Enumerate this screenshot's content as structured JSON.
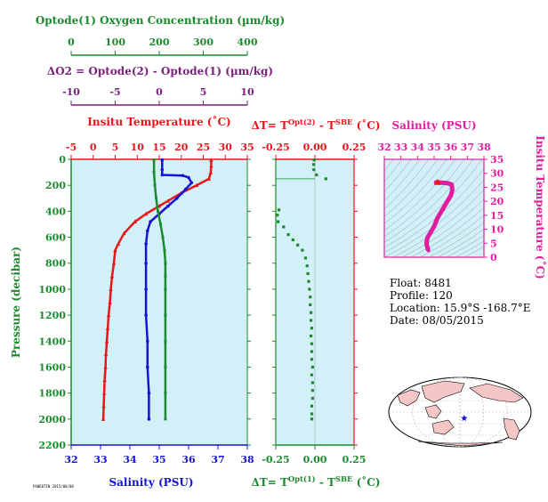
{
  "info": {
    "float": "Float: 8481",
    "profile": "Profile: 120",
    "location": "Location: 15.9°S -168.7°E",
    "date": "Date: 08/05/2015"
  },
  "stamp": "P4WE8TIN 2015/08/08",
  "colors": {
    "temperature": "#e8161b",
    "salinity": "#1414d4",
    "oxygen": "#1c8a2e",
    "delta_o2": "#7b1f7e",
    "ts_diagram": "#e01ea0",
    "panel_bg": "#d2f0f7",
    "land": "#f4c6c6"
  },
  "chart_data": [
    {
      "type": "line",
      "id": "profile",
      "ylabel": "Pressure (decibar)",
      "ylim": [
        2200,
        0
      ],
      "yticks": [
        0,
        200,
        400,
        600,
        800,
        1000,
        1200,
        1400,
        1600,
        1800,
        2000,
        2200
      ],
      "axes": [
        {
          "label": "Insitu Temperature (˚C)",
          "color": "#e8161b",
          "lim": [
            -5,
            35
          ],
          "ticks": [
            -5,
            0,
            5,
            10,
            15,
            20,
            25,
            30,
            35
          ],
          "position": "top"
        },
        {
          "label": "Salinity (PSU)",
          "color": "#1414d4",
          "lim": [
            32,
            38
          ],
          "ticks": [
            32,
            33,
            34,
            35,
            36,
            37,
            38
          ],
          "position": "bottom"
        },
        {
          "label": "Optode(1) Oxygen Concentration (µm/kg)",
          "color": "#1c8a2e",
          "lim": [
            0,
            400
          ],
          "ticks": [
            0,
            100,
            200,
            300,
            400
          ],
          "position": "top-detached"
        },
        {
          "label": "ΔO2 = Optode(2) - Optode(1)   (µm/kg)",
          "color": "#7b1f7e",
          "lim": [
            -10,
            10
          ],
          "ticks": [
            -10,
            -5,
            0,
            5,
            10
          ],
          "position": "top-detached"
        }
      ],
      "series": [
        {
          "name": "Insitu Temperature",
          "axis": 0,
          "points": [
            [
              26.8,
              5
            ],
            [
              26.8,
              50
            ],
            [
              26.7,
              100
            ],
            [
              26.3,
              150
            ],
            [
              23.5,
              200
            ],
            [
              20,
              260
            ],
            [
              17,
              320
            ],
            [
              15,
              360
            ],
            [
              12,
              420
            ],
            [
              9.5,
              480
            ],
            [
              7,
              570
            ],
            [
              5.7,
              650
            ],
            [
              5,
              700
            ],
            [
              4.7,
              800
            ],
            [
              4.3,
              900
            ],
            [
              4,
              1000
            ],
            [
              3.8,
              1100
            ],
            [
              3.5,
              1200
            ],
            [
              3.3,
              1300
            ],
            [
              3.1,
              1400
            ],
            [
              2.9,
              1500
            ],
            [
              2.8,
              1600
            ],
            [
              2.6,
              1700
            ],
            [
              2.5,
              1800
            ],
            [
              2.4,
              1900
            ],
            [
              2.3,
              2000
            ]
          ]
        },
        {
          "name": "Salinity",
          "axis": 1,
          "points": [
            [
              35.1,
              5
            ],
            [
              35.1,
              80
            ],
            [
              35.1,
              120
            ],
            [
              35.8,
              125
            ],
            [
              36.0,
              140
            ],
            [
              36.1,
              180
            ],
            [
              35.9,
              230
            ],
            [
              35.6,
              300
            ],
            [
              35.3,
              360
            ],
            [
              35.0,
              420
            ],
            [
              34.7,
              480
            ],
            [
              34.6,
              550
            ],
            [
              34.55,
              650
            ],
            [
              34.55,
              800
            ],
            [
              34.55,
              1000
            ],
            [
              34.55,
              1200
            ],
            [
              34.6,
              1400
            ],
            [
              34.6,
              1600
            ],
            [
              34.65,
              1800
            ],
            [
              34.65,
              2000
            ]
          ]
        },
        {
          "name": "Oxygen",
          "axis": 2,
          "points": [
            [
              188,
              5
            ],
            [
              188,
              100
            ],
            [
              190,
              200
            ],
            [
              193,
              300
            ],
            [
              197,
              400
            ],
            [
              203,
              500
            ],
            [
              208,
              600
            ],
            [
              212,
              700
            ],
            [
              214,
              800
            ],
            [
              214,
              900
            ],
            [
              214,
              1000
            ],
            [
              214,
              1200
            ],
            [
              214,
              1400
            ],
            [
              214,
              1600
            ],
            [
              214,
              1800
            ],
            [
              214,
              2000
            ]
          ]
        }
      ]
    },
    {
      "type": "scatter",
      "id": "delta_t",
      "xlabel_top": "ΔT= T^{Opt(2)} - T^{SBE} (˚C)",
      "xlabel_bottom": "ΔT= T^{Opt(1)} - T^{SBE} (˚C)",
      "xlim": [
        -0.25,
        0.25
      ],
      "xticks": [
        -0.25,
        0.0,
        0.25
      ],
      "xtick_labels": [
        "-0.25",
        "0.00",
        "0.25"
      ],
      "ylim": [
        2200,
        0
      ],
      "series": [
        {
          "name": "ΔT Opt(1)",
          "points": [
            [
              -0.005,
              5
            ],
            [
              -0.008,
              40
            ],
            [
              -0.007,
              80
            ],
            [
              0.01,
              120
            ],
            [
              0.07,
              150
            ],
            [
              -0.23,
              390
            ],
            [
              -0.24,
              430
            ],
            [
              -0.235,
              480
            ],
            [
              -0.2,
              520
            ],
            [
              -0.17,
              580
            ],
            [
              -0.14,
              620
            ],
            [
              -0.11,
              660
            ],
            [
              -0.08,
              700
            ],
            [
              -0.06,
              760
            ],
            [
              -0.05,
              820
            ],
            [
              -0.045,
              880
            ],
            [
              -0.04,
              940
            ],
            [
              -0.035,
              1000
            ],
            [
              -0.03,
              1060
            ],
            [
              -0.03,
              1120
            ],
            [
              -0.025,
              1180
            ],
            [
              -0.025,
              1240
            ],
            [
              -0.02,
              1300
            ],
            [
              -0.025,
              1360
            ],
            [
              -0.02,
              1420
            ],
            [
              -0.02,
              1480
            ],
            [
              -0.02,
              1540
            ],
            [
              -0.015,
              1600
            ],
            [
              -0.02,
              1660
            ],
            [
              -0.015,
              1720
            ],
            [
              -0.015,
              1780
            ],
            [
              -0.015,
              1840
            ],
            [
              -0.02,
              1900
            ],
            [
              -0.02,
              1960
            ],
            [
              -0.02,
              2000
            ]
          ]
        }
      ]
    },
    {
      "type": "line",
      "id": "ts_diagram",
      "xlabel": "Salinity (PSU)",
      "ylabel": "Insitu Temperature (˚C)",
      "xlim": [
        32,
        38
      ],
      "xticks": [
        32,
        33,
        34,
        35,
        36,
        37,
        38
      ],
      "ylim": [
        0,
        35
      ],
      "yticks": [
        0,
        5,
        10,
        15,
        20,
        25,
        30,
        35
      ],
      "series": [
        {
          "name": "T-S",
          "points": [
            [
              35.1,
              26.8
            ],
            [
              35.8,
              26.5
            ],
            [
              36.05,
              26
            ],
            [
              36.1,
              24
            ],
            [
              36.0,
              22
            ],
            [
              35.8,
              20
            ],
            [
              35.5,
              17
            ],
            [
              35.2,
              14
            ],
            [
              35.0,
              11
            ],
            [
              34.8,
              9
            ],
            [
              34.6,
              7
            ],
            [
              34.55,
              5.5
            ],
            [
              34.55,
              4.5
            ],
            [
              34.6,
              3.5
            ],
            [
              34.65,
              2.5
            ]
          ]
        }
      ],
      "marker": {
        "x": 35.2,
        "y": 26.8
      }
    },
    {
      "type": "map",
      "id": "location_map",
      "marker": {
        "lon": -168.7,
        "lat": -15.9
      }
    }
  ]
}
